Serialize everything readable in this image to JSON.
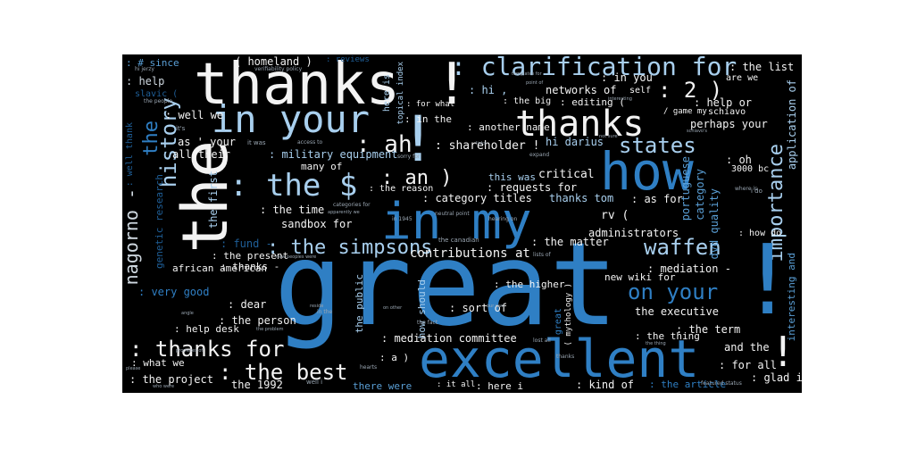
{
  "wordcloud": {
    "big": {
      "great": "great",
      "thanks_bang": "thanks !",
      "in_your": "in your",
      "the_vertical": "the",
      "in_my": "in my",
      "how": "how",
      "excellent": "excellent",
      "thanks": "thanks",
      "clarification_for": ": clarification for",
      "the_dollar": ": the $",
      "on_your": "on your",
      "the_best": ": the best",
      "thanks_for": ": thanks for",
      "the_simpsons": ": the simpsons",
      "waffen": "waffen",
      "an": ": an )",
      "ah": ": ah",
      "states": "states",
      "two": ": 2 )",
      "history": "history",
      "importance": "importance",
      "nagorno": "nagorno -",
      "the_history": "the",
      "bang_big": "!",
      "bang_right": "!",
      "bang_right2": "!"
    },
    "medium": {
      "homeland": "( homeland )",
      "since": ": # since",
      "help": ": help",
      "slavic": "slavic (",
      "well_we": ": well we",
      "as_your": "as ' your",
      "all_their": "all their",
      "military_equipment": ": military equipment",
      "many_of": "many of",
      "the_time": ": the time",
      "sandbox_for": "sandbox for",
      "fund": ": fund -",
      "the_present": ": the present",
      "african_american": "african american",
      "thanks_dash": ": thanks -",
      "very_good": ": very good",
      "dear": ": dear",
      "the_person": ": the person",
      "help_desk": ": help desk",
      "what_we": ": what we",
      "the_project": ": the project",
      "the_1992": "the 1992",
      "there_were": "there were",
      "it_all": ": it all",
      "here_i": ": here i",
      "kind_of": ": kind of",
      "the_article": ": the article",
      "glad_i": ": glad i",
      "for_all": ": for all",
      "and_the": "and the",
      "the_thing": ": the thing",
      "the_term": ": the term",
      "the_executive": "the executive",
      "new_wiki_for": "new wiki for",
      "mediation": ": mediation -",
      "mediation_committee": ": mediation committee",
      "sort_of": ": sort of",
      "the_higher": ": the higher",
      "contributions_at": "contributions at",
      "the_matter": ": the matter",
      "administrators": "administrators",
      "thanks_tom": "thanks tom",
      "as_for": ": as for",
      "rv": "rv (",
      "category_titles": ": category titles",
      "requests_for": ": requests for",
      "the_reason": ": the reason",
      "this_was": "this was",
      "critical": "critical",
      "shareholder": ": shareholder !",
      "hi_darius": "hi darius",
      "another_name": ": another name",
      "in_the": ": in the",
      "for_what": ": for what",
      "the_big": ": the big",
      "hi": ": hi ,",
      "networks_of": "networks of",
      "in_you": ": in you",
      "editing": ": editing (",
      "self": "self",
      "the_list": ": the list",
      "are_we": "are we",
      "help_or": ": help or",
      "game_my": "/ game my",
      "schiavo": "schiavo",
      "perhaps_your": "perhaps your",
      "oh": ": oh",
      "bc_3000": "3000 bc",
      "portuguese": "portuguese",
      "category": "category",
      "dvd_quality": "dvd quality",
      "how_do": ": how do",
      "interesting_and": "interesting and",
      "application_of": "application of",
      "genetic_research": "genetic research",
      "the_first": "the first",
      "well_thank": ": well thank",
      "topical_index": "topical index",
      "here_is": "here is",
      "the_public": "the public",
      "how_should": "how should",
      "mythology": "( mythology )",
      "great_small": "great",
      "a_paren": ": a )",
      "reviews": ": reviews"
    },
    "tiny": [
      "hi jerzy",
      "verifiability policy",
      "the people",
      "it's",
      "it was",
      "access to",
      "sorry for",
      "categories for",
      "apparently we",
      "new peoples were",
      "the canadian",
      "neutral point",
      "in 1945",
      "hearing on",
      "expand",
      "lists of",
      "our own",
      "the fact",
      "well i",
      "hearts",
      "lost all",
      "thanks",
      "featured status",
      "who were",
      "promotes of",
      "angle",
      "please",
      "reside",
      "templates for",
      "interesting",
      "where is",
      "schiavo's",
      "i do",
      "the problem",
      "in the",
      "on other",
      "not sure",
      "links",
      "point of",
      "the thing"
    ]
  }
}
